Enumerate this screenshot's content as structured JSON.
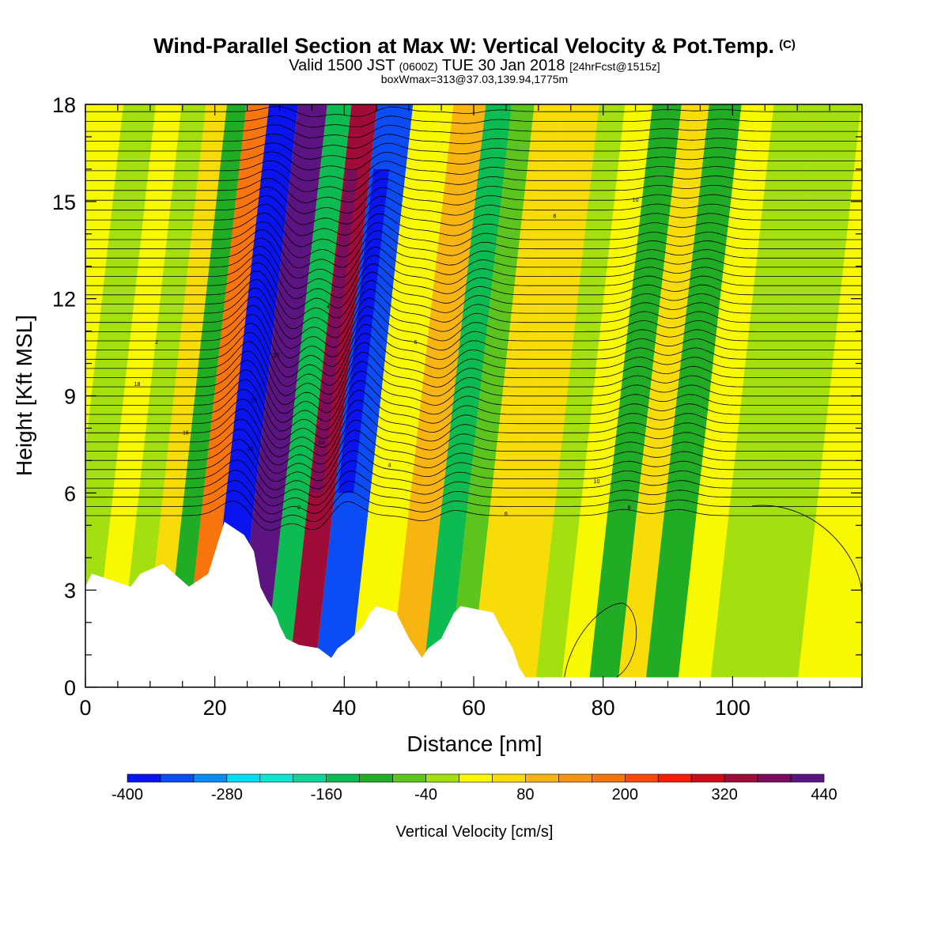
{
  "header": {
    "title": "Wind-Parallel Section at Max W: Vertical Velocity & Pot.Temp.",
    "title_unit": "(C)",
    "valid_prefix": "Valid 1500 JST",
    "valid_utc": "(0600Z)",
    "valid_date": "TUE 30 Jan 2018",
    "valid_fcst": "[24hrFcst@1515z]",
    "box_info": "boxWmax=313@37.03,139.94,1775m"
  },
  "chart_data": {
    "type": "heatmap",
    "xlabel": "Distance [nm]",
    "ylabel": "Height [Kft MSL]",
    "xlim": [
      0,
      120
    ],
    "ylim": [
      0,
      18
    ],
    "x_ticks": [
      0,
      20,
      40,
      60,
      80,
      100
    ],
    "y_ticks": [
      0,
      3,
      6,
      9,
      12,
      15,
      18
    ],
    "colorbar": {
      "label": "Vertical Velocity [cm/s]",
      "tick_labels": [
        "-400",
        "-280",
        "-160",
        "-40",
        "80",
        "200",
        "320",
        "440"
      ],
      "levels": [
        -400,
        -360,
        -320,
        -280,
        -240,
        -200,
        -160,
        -120,
        -80,
        -40,
        0,
        40,
        80,
        120,
        160,
        200,
        240,
        280,
        320,
        360,
        400,
        440
      ],
      "colors": [
        "#0a14ee",
        "#0c4cf5",
        "#0a8cf0",
        "#08dcf5",
        "#10e4d0",
        "#10d496",
        "#0cbc52",
        "#20ac24",
        "#5cc41c",
        "#a4e010",
        "#f8f800",
        "#f8dc08",
        "#f8b410",
        "#f89414",
        "#f8740c",
        "#fa4a08",
        "#f81c04",
        "#cc0c18",
        "#a00c38",
        "#7c0c5c",
        "#5c1480"
      ]
    },
    "velocity_bands": [
      {
        "x": 2,
        "w": -30
      },
      {
        "x": 6,
        "w": 30
      },
      {
        "x": 10,
        "w": -40
      },
      {
        "x": 13.5,
        "w": 60
      },
      {
        "x": 16.5,
        "w": -110
      },
      {
        "x": 19.5,
        "w": 170
      },
      {
        "x": 23.5,
        "w": -380
      },
      {
        "x": 28.5,
        "w": 400
      },
      {
        "x": 32.5,
        "w": -150
      },
      {
        "x": 36,
        "w": 320
      },
      {
        "x": 40.5,
        "w": -340
      },
      {
        "x": 47,
        "w": 20
      },
      {
        "x": 53,
        "w": 90
      },
      {
        "x": 57,
        "w": -130
      },
      {
        "x": 61,
        "w": -50
      },
      {
        "x": 64,
        "w": 40
      },
      {
        "x": 70,
        "w": 40
      },
      {
        "x": 75,
        "w": -30
      },
      {
        "x": 78,
        "w": 20
      },
      {
        "x": 83.5,
        "w": -120
      },
      {
        "x": 87,
        "w": 50
      },
      {
        "x": 92,
        "w": -100
      },
      {
        "x": 97,
        "w": 30
      },
      {
        "x": 102,
        "w": -20
      },
      {
        "x": 110,
        "w": -40
      },
      {
        "x": 116,
        "w": 10
      }
    ],
    "theta_contour_labels": [
      "2",
      "4",
      "6",
      "8",
      "10",
      "12",
      "14",
      "16",
      "18",
      "20",
      "22"
    ],
    "terrain": [
      [
        0,
        3.1
      ],
      [
        1,
        3.5
      ],
      [
        7,
        3.1
      ],
      [
        8.5,
        3.5
      ],
      [
        12,
        3.8
      ],
      [
        16,
        3.1
      ],
      [
        19,
        3.5
      ],
      [
        21.5,
        5.1
      ],
      [
        24.5,
        4.7
      ],
      [
        26,
        4.2
      ],
      [
        27,
        3.1
      ],
      [
        28,
        2.7
      ],
      [
        29.5,
        2.2
      ],
      [
        30,
        1.9
      ],
      [
        31,
        1.5
      ],
      [
        33,
        1.3
      ],
      [
        36,
        1.2
      ],
      [
        38,
        0.9
      ],
      [
        39,
        1.2
      ],
      [
        41,
        1.5
      ],
      [
        43,
        1.9
      ],
      [
        44,
        2.3
      ],
      [
        45,
        2.5
      ],
      [
        48,
        2.3
      ],
      [
        49,
        1.9
      ],
      [
        50,
        1.5
      ],
      [
        51,
        1.2
      ],
      [
        52,
        0.9
      ],
      [
        53,
        1.2
      ],
      [
        55,
        1.5
      ],
      [
        56,
        1.9
      ],
      [
        57,
        2.3
      ],
      [
        58,
        2.5
      ],
      [
        63,
        2.3
      ],
      [
        64,
        1.9
      ],
      [
        66,
        1.2
      ],
      [
        67,
        0.6
      ],
      [
        68,
        0.3
      ],
      [
        120,
        0.3
      ]
    ]
  }
}
